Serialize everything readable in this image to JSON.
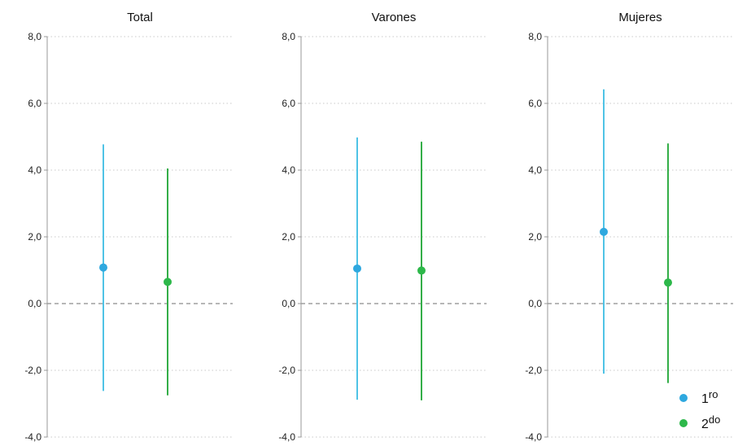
{
  "chart_data": {
    "type": "scatter",
    "style": "point-with-error-bars",
    "y_ticks": [
      8.0,
      6.0,
      4.0,
      2.0,
      0.0,
      -2.0,
      -4.0
    ],
    "y_tick_labels": [
      "8,0",
      "6,0",
      "4,0",
      "2,0",
      "0,0",
      "-2,0",
      "-4,0"
    ],
    "ylim": [
      -4.0,
      8.0
    ],
    "grid": "horizontal dotted",
    "reference_line": 0.0,
    "legend": {
      "placement": "bottom-right",
      "entries": [
        {
          "base": "1",
          "sup": "ro",
          "color": "#2ea8df"
        },
        {
          "base": "2",
          "sup": "do",
          "color": "#2db84a"
        }
      ]
    },
    "series_colors": {
      "line_1": "#4fc3e6",
      "point_1": "#2ea8df",
      "line_2": "#34ae48",
      "point_2": "#2db84a"
    },
    "panels": [
      {
        "title": "Total",
        "points": [
          {
            "series": "1ro",
            "value": 1.08,
            "lower": -2.62,
            "upper": 4.77
          },
          {
            "series": "2do",
            "value": 0.65,
            "lower": -2.75,
            "upper": 4.05
          }
        ]
      },
      {
        "title": "Varones",
        "points": [
          {
            "series": "1ro",
            "value": 1.05,
            "lower": -2.88,
            "upper": 4.98
          },
          {
            "series": "2do",
            "value": 0.99,
            "lower": -2.9,
            "upper": 4.85
          }
        ]
      },
      {
        "title": "Mujeres",
        "points": [
          {
            "series": "1ro",
            "value": 2.15,
            "lower": -2.1,
            "upper": 6.42
          },
          {
            "series": "2do",
            "value": 0.63,
            "lower": -2.38,
            "upper": 4.8
          }
        ]
      }
    ]
  }
}
